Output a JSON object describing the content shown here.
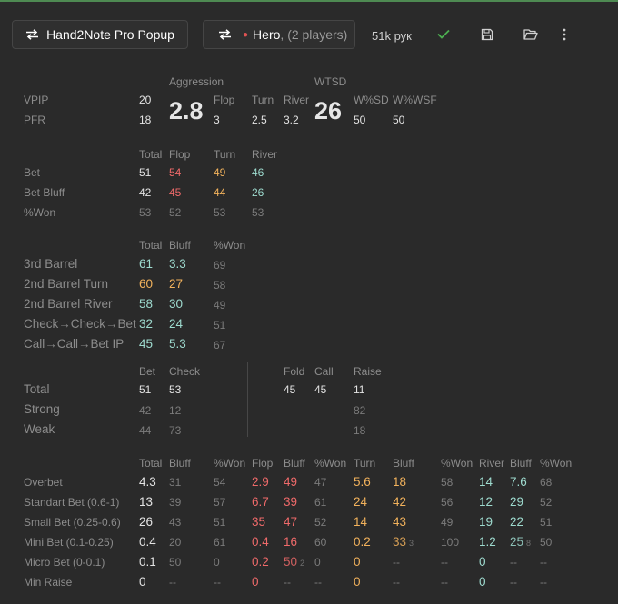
{
  "toolbar": {
    "popup_label": "Hand2Note Pro Popup",
    "hero_name": "Hero",
    "hero_players": "(2 players)",
    "hands_count": "51k рук",
    "check_icon": "check-icon",
    "save_icon": "save-icon",
    "folder_icon": "folder-open-icon",
    "more_icon": "more-vertical-icon"
  },
  "colors": {
    "red": "#ef6a6a",
    "orange": "#f2b25c",
    "cyan": "#9edbcf",
    "accent_green": "#4e8a52"
  },
  "preflop": {
    "vpip_label": "VPIP",
    "vpip": "20",
    "pfr_label": "PFR",
    "pfr": "18",
    "agg_label": "Aggression",
    "agg": "2.8",
    "flop_label": "Flop",
    "flop": "3",
    "turn_label": "Turn",
    "turn": "2.5",
    "river_label": "River",
    "river": "3.2",
    "wtsd_label": "WTSD",
    "wtsd": "26",
    "wsd_label": "W%SD",
    "wsd": "50",
    "wwsf_label": "W%WSF",
    "wwsf": "50"
  },
  "betting": {
    "headers": {
      "total": "Total",
      "flop": "Flop",
      "turn": "Turn",
      "river": "River"
    },
    "rows": [
      {
        "label": "Bet",
        "total": "51",
        "flop": "54",
        "turn": "49",
        "river": "46"
      },
      {
        "label": "Bet Bluff",
        "total": "42",
        "flop": "45",
        "turn": "44",
        "river": "26"
      },
      {
        "label": "%Won",
        "total": "53",
        "flop": "52",
        "turn": "53",
        "river": "53"
      }
    ]
  },
  "barrels": {
    "headers": {
      "total": "Total",
      "bluff": "Bluff",
      "won": "%Won"
    },
    "rows": [
      {
        "label": "3rd Barrel",
        "total": "61",
        "bluff": "3.3",
        "won": "69"
      },
      {
        "label": "2nd Barrel Turn",
        "total": "60",
        "bluff": "27",
        "won": "58"
      },
      {
        "label": "2nd Barrel River",
        "total": "58",
        "bluff": "30",
        "won": "49"
      },
      {
        "label": "Check→Check→Bet",
        "total": "32",
        "bluff": "24",
        "won": "51"
      },
      {
        "label": "Call→Call→Bet IP",
        "total": "45",
        "bluff": "5.3",
        "won": "67"
      }
    ]
  },
  "strength": {
    "headers": {
      "bet": "Bet",
      "check": "Check",
      "fold": "Fold",
      "call": "Call",
      "raise": "Raise"
    },
    "rows": [
      {
        "label": "Total",
        "bet": "51",
        "check": "53",
        "fold": "45",
        "call": "45",
        "raise": "11"
      },
      {
        "label": "Strong",
        "bet": "42",
        "check": "12",
        "fold": "",
        "call": "",
        "raise": "82"
      },
      {
        "label": "Weak",
        "bet": "44",
        "check": "73",
        "fold": "",
        "call": "",
        "raise": "18"
      }
    ]
  },
  "sizing": {
    "headers": [
      "Total",
      "Bluff",
      "%Won",
      "Flop",
      "Bluff",
      "%Won",
      "Turn",
      "Bluff",
      "%Won",
      "River",
      "Bluff",
      "%Won"
    ],
    "rows": [
      {
        "label": "Overbet",
        "cells": [
          "4.3",
          "31",
          "54",
          "2.9",
          "49",
          "47",
          "5.6",
          "18",
          "58",
          "14",
          "7.6",
          "68"
        ],
        "sups": []
      },
      {
        "label": "Standart Bet (0.6-1)",
        "cells": [
          "13",
          "39",
          "57",
          "6.7",
          "39",
          "61",
          "24",
          "42",
          "56",
          "12",
          "29",
          "52"
        ],
        "sups": []
      },
      {
        "label": "Small Bet (0.25-0.6)",
        "cells": [
          "26",
          "43",
          "51",
          "35",
          "47",
          "52",
          "14",
          "43",
          "49",
          "19",
          "22",
          "51"
        ],
        "sups": []
      },
      {
        "label": "Mini Bet (0.1-0.25)",
        "cells": [
          "0.4",
          "20",
          "61",
          "0.4",
          "16",
          "60",
          "0.2",
          "33",
          "100",
          "1.2",
          "25",
          "50"
        ],
        "sups": [
          {
            "col": 7,
            "v": "3"
          },
          {
            "col": 10,
            "v": "8"
          }
        ]
      },
      {
        "label": "Micro Bet (0-0.1)",
        "cells": [
          "0.1",
          "50",
          "0",
          "0.2",
          "50",
          "0",
          "0",
          "--",
          "--",
          "0",
          "--",
          "--"
        ],
        "sups": [
          {
            "col": 4,
            "v": "2"
          }
        ]
      },
      {
        "label": "Min Raise",
        "cells": [
          "0",
          "--",
          "--",
          "0",
          "--",
          "--",
          "0",
          "--",
          "--",
          "0",
          "--",
          "--"
        ],
        "sups": []
      }
    ]
  }
}
